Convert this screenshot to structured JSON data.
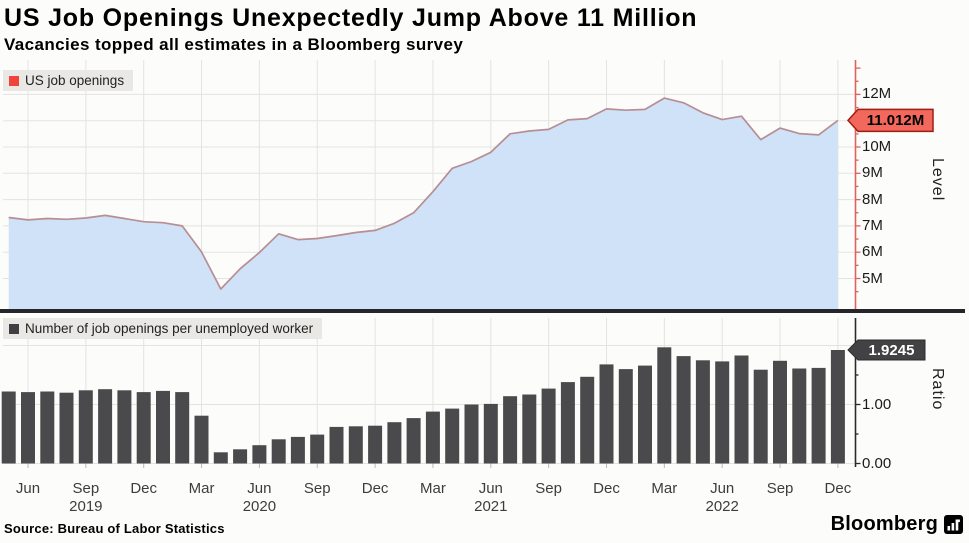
{
  "header": {
    "title": "US Job Openings Unexpectedly Jump Above 11 Million",
    "subtitle": "Vacancies topped all estimates in a Bloomberg survey"
  },
  "source": {
    "text": "Source: Bureau of Labor Statistics"
  },
  "branding": {
    "logo_text": "Bloomberg",
    "logo_icon": "bloomberg-terminal-icon"
  },
  "colors": {
    "area_fill": "#cfe2f7",
    "line": "#b78e94",
    "bar": "#4a4a4c",
    "level_axis": "#e0625c",
    "ratio_axis": "#2a2a2a",
    "level_badge_bg": "#f2685c",
    "level_badge_border": "#9e1d15",
    "ratio_badge_bg": "#424245",
    "legend_chip_bg": "#e9e8e4",
    "legend_swatch_level": "#f0433d",
    "legend_swatch_ratio": "#403f41",
    "gridline": "#e3e3e1",
    "divider": "#26262a"
  },
  "chart_data": [
    {
      "type": "area",
      "legend": "US job openings",
      "axis_label": "Level",
      "unit": "millions of job openings",
      "legend_position": "top-left",
      "grid": true,
      "latest_value_label": "11.012M",
      "ylim": [
        3.8,
        13.3
      ],
      "yticks": [
        {
          "value": 12,
          "label": "12M"
        },
        {
          "value": 10,
          "label": "10M"
        },
        {
          "value": 9,
          "label": "9M"
        },
        {
          "value": 8,
          "label": "8M"
        },
        {
          "value": 7,
          "label": "7M"
        },
        {
          "value": 6,
          "label": "6M"
        },
        {
          "value": 5,
          "label": "5M"
        }
      ],
      "months": [
        "May 2019",
        "Jun 2019",
        "Jul 2019",
        "Aug 2019",
        "Sep 2019",
        "Oct 2019",
        "Nov 2019",
        "Dec 2019",
        "Jan 2020",
        "Feb 2020",
        "Mar 2020",
        "Apr 2020",
        "May 2020",
        "Jun 2020",
        "Jul 2020",
        "Aug 2020",
        "Sep 2020",
        "Oct 2020",
        "Nov 2020",
        "Dec 2020",
        "Jan 2021",
        "Feb 2021",
        "Mar 2021",
        "Apr 2021",
        "May 2021",
        "Jun 2021",
        "Jul 2021",
        "Aug 2021",
        "Sep 2021",
        "Oct 2021",
        "Nov 2021",
        "Dec 2021",
        "Jan 2022",
        "Feb 2022",
        "Mar 2022",
        "Apr 2022",
        "May 2022",
        "Jun 2022",
        "Jul 2022",
        "Aug 2022",
        "Sep 2022",
        "Oct 2022",
        "Nov 2022",
        "Dec 2022"
      ],
      "values": [
        7.32,
        7.23,
        7.28,
        7.25,
        7.3,
        7.4,
        7.28,
        7.16,
        7.12,
        7.0,
        6.01,
        4.6,
        5.37,
        5.99,
        6.7,
        6.48,
        6.52,
        6.63,
        6.75,
        6.83,
        7.1,
        7.5,
        8.3,
        9.19,
        9.45,
        9.8,
        10.5,
        10.61,
        10.67,
        11.03,
        11.08,
        11.45,
        11.4,
        11.43,
        11.86,
        11.68,
        11.3,
        11.04,
        11.17,
        10.28,
        10.72,
        10.51,
        10.46,
        11.012
      ]
    },
    {
      "type": "bar",
      "legend": "Number of job openings per unemployed worker",
      "axis_label": "Ratio",
      "unit": "job openings per unemployed worker",
      "legend_position": "top-left",
      "grid": true,
      "latest_value_label": "1.9245",
      "ylim": [
        0,
        2.45
      ],
      "yticks": [
        {
          "value": 1,
          "label": "1.00"
        },
        {
          "value": 0,
          "label": "0.00"
        }
      ],
      "months": [
        "May 2019",
        "Jun 2019",
        "Jul 2019",
        "Aug 2019",
        "Sep 2019",
        "Oct 2019",
        "Nov 2019",
        "Dec 2019",
        "Jan 2020",
        "Feb 2020",
        "Mar 2020",
        "Apr 2020",
        "May 2020",
        "Jun 2020",
        "Jul 2020",
        "Aug 2020",
        "Sep 2020",
        "Oct 2020",
        "Nov 2020",
        "Dec 2020",
        "Jan 2021",
        "Feb 2021",
        "Mar 2021",
        "Apr 2021",
        "May 2021",
        "Jun 2021",
        "Jul 2021",
        "Aug 2021",
        "Sep 2021",
        "Oct 2021",
        "Nov 2021",
        "Dec 2021",
        "Jan 2022",
        "Feb 2022",
        "Mar 2022",
        "Apr 2022",
        "May 2022",
        "Jun 2022",
        "Jul 2022",
        "Aug 2022",
        "Sep 2022",
        "Oct 2022",
        "Nov 2022",
        "Dec 2022"
      ],
      "values": [
        1.22,
        1.21,
        1.22,
        1.2,
        1.24,
        1.26,
        1.24,
        1.21,
        1.23,
        1.21,
        0.81,
        0.19,
        0.24,
        0.31,
        0.41,
        0.45,
        0.49,
        0.62,
        0.63,
        0.64,
        0.7,
        0.77,
        0.88,
        0.93,
        1.0,
        1.01,
        1.14,
        1.17,
        1.27,
        1.38,
        1.47,
        1.68,
        1.6,
        1.66,
        1.97,
        1.82,
        1.75,
        1.73,
        1.83,
        1.59,
        1.74,
        1.61,
        1.62,
        1.9245
      ],
      "x_tick_labels": [
        "Jun",
        "Sep",
        "Dec",
        "Mar",
        "Jun",
        "Sep",
        "Dec",
        "Mar",
        "Jun",
        "Sep",
        "Dec",
        "Mar",
        "Jun",
        "Sep",
        "Dec"
      ],
      "year_labels": [
        {
          "label": "2019",
          "tick_index": 1
        },
        {
          "label": "2020",
          "tick_index": 4
        },
        {
          "label": "2021",
          "tick_index": 8
        },
        {
          "label": "2022",
          "tick_index": 12
        }
      ]
    }
  ]
}
